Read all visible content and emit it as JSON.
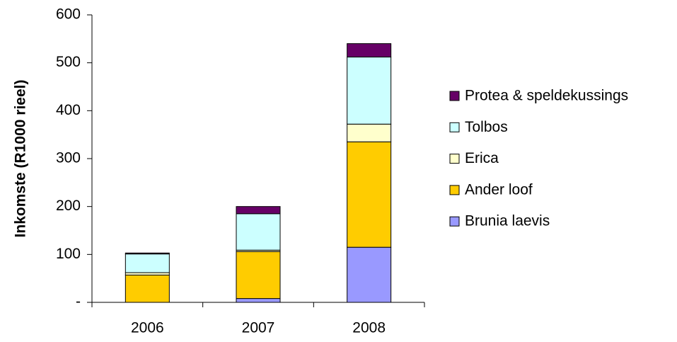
{
  "chart_data": {
    "type": "stacked_bar",
    "y_label": "Inkomste (R1000 rieel)",
    "categories": [
      "2006",
      "2007",
      "2008"
    ],
    "series": [
      {
        "name": "Brunia laevis",
        "color": "#9999ff",
        "values": [
          0,
          8,
          115
        ]
      },
      {
        "name": "Ander loof",
        "color": "#ffcc00",
        "values": [
          57,
          98,
          220
        ]
      },
      {
        "name": "Erica",
        "color": "#ffffcc",
        "values": [
          5,
          3,
          37
        ]
      },
      {
        "name": "Tolbos",
        "color": "#ccffff",
        "values": [
          39,
          76,
          140
        ]
      },
      {
        "name": "Protea & speldekussings",
        "color": "#660066",
        "values": [
          2,
          15,
          28
        ]
      }
    ],
    "ylim": [
      0,
      600
    ],
    "yticks": [
      {
        "value": 0,
        "label": "-"
      },
      100,
      200,
      300,
      400,
      500,
      600
    ],
    "grid": false
  }
}
